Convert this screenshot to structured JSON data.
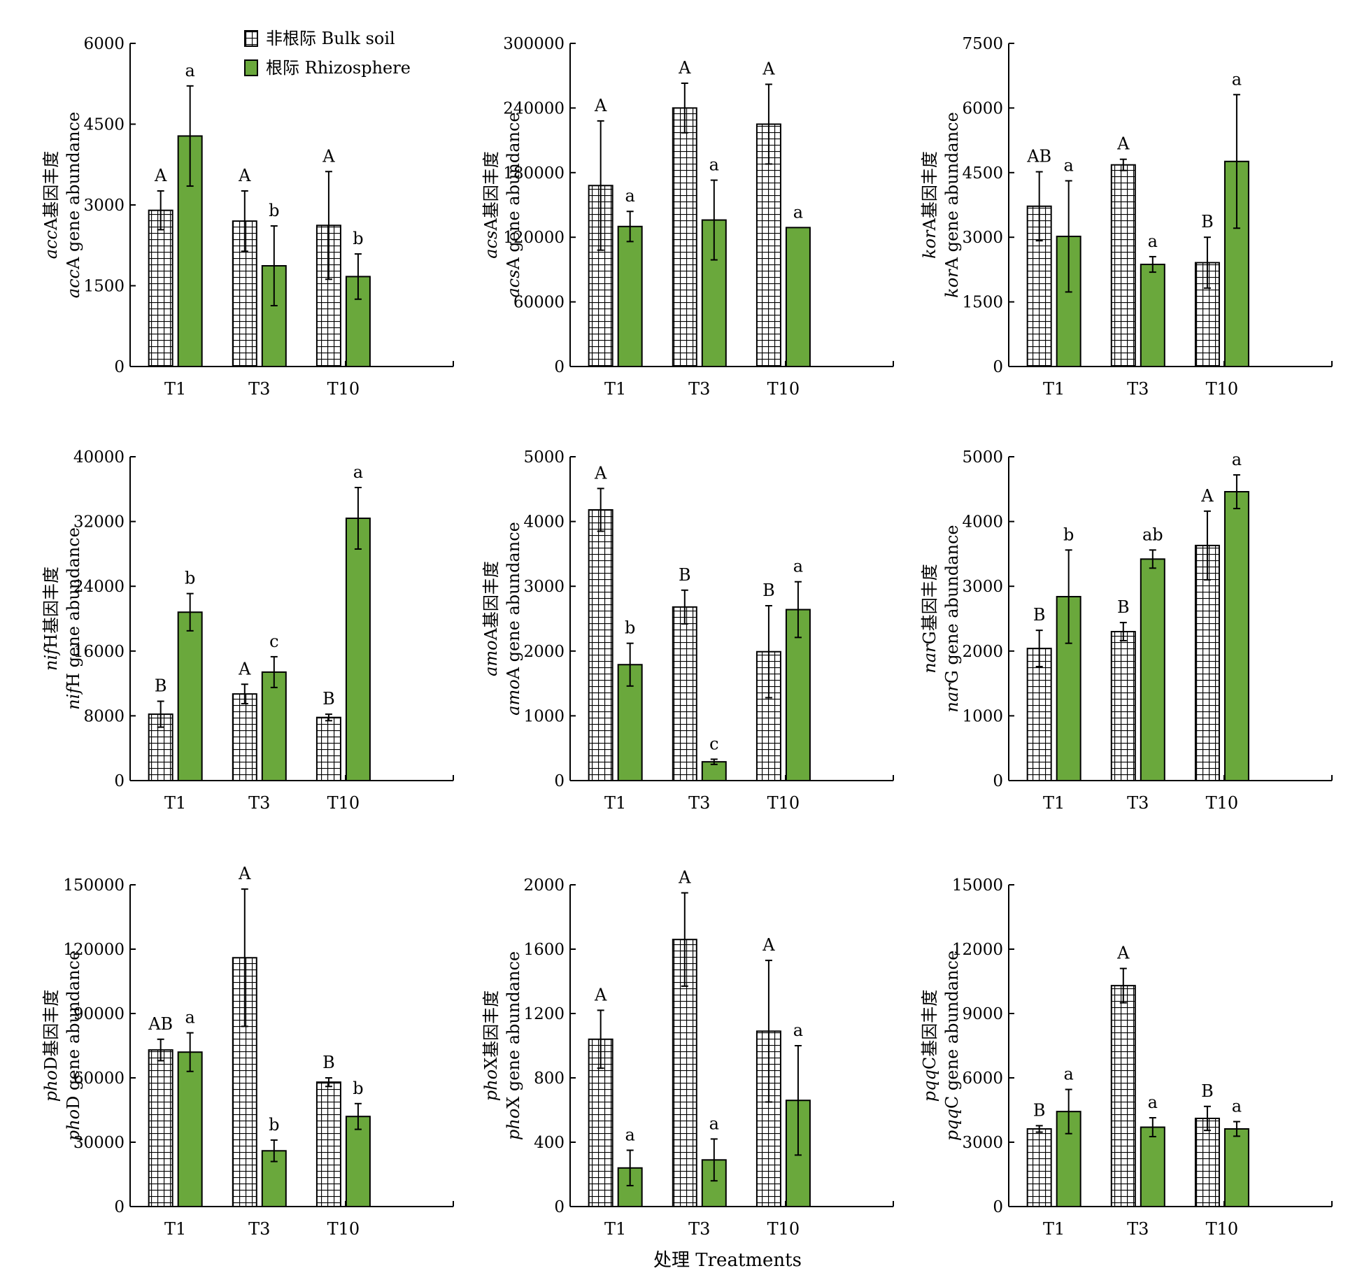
{
  "figure": {
    "xlabel": "处理 Treatments",
    "legend": [
      {
        "label": "非根际 Bulk soil",
        "pattern": "grid"
      },
      {
        "label": "根际 Rhizosphere",
        "pattern": "solid"
      }
    ],
    "colors": {
      "rhizosphere": "#6aa83c",
      "bulk_fill": "#ffffff",
      "line": "#000000"
    }
  },
  "chart_data": [
    {
      "type": "bar",
      "gene": "acc",
      "suffix": "A",
      "ylabel_cn": "基因丰度",
      "ylabel_en": "gene abundance",
      "categories": [
        "T1",
        "T3",
        "T10"
      ],
      "ylim": [
        0,
        6000
      ],
      "yticks": [
        "0",
        "1500",
        "3000",
        "4500",
        "6000"
      ],
      "series": [
        {
          "name": "非根际 Bulk soil",
          "values": [
            2900,
            2700,
            2620
          ],
          "errors": [
            360,
            560,
            1000
          ],
          "letters": [
            "A",
            "A",
            "A"
          ]
        },
        {
          "name": "根际 Rhizosphere",
          "values": [
            4280,
            1870,
            1670
          ],
          "errors": [
            930,
            740,
            420
          ],
          "letters": [
            "a",
            "b",
            "b"
          ]
        }
      ]
    },
    {
      "type": "bar",
      "gene": "acs",
      "suffix": "A",
      "ylabel_cn": "基因丰度",
      "ylabel_en": "gene abundance",
      "categories": [
        "T1",
        "T3",
        "T10"
      ],
      "ylim": [
        0,
        300000
      ],
      "yticks": [
        "0",
        "60000",
        "120000",
        "180000",
        "240000",
        "300000"
      ],
      "series": [
        {
          "name": "非根际 Bulk soil",
          "values": [
            168000,
            240000,
            225000
          ],
          "errors": [
            60000,
            23000,
            37000
          ],
          "letters": [
            "A",
            "A",
            "A"
          ]
        },
        {
          "name": "根际 Rhizosphere",
          "values": [
            130000,
            136000,
            129000
          ],
          "errors": [
            14000,
            37000,
            0
          ],
          "letters": [
            "a",
            "a",
            "a"
          ]
        }
      ]
    },
    {
      "type": "bar",
      "gene": "kor",
      "suffix": "A",
      "ylabel_cn": "基因丰度",
      "ylabel_en": "gene abundance",
      "categories": [
        "T1",
        "T3",
        "T10"
      ],
      "ylim": [
        0,
        7500
      ],
      "yticks": [
        "0",
        "1500",
        "3000",
        "4500",
        "6000",
        "7500"
      ],
      "series": [
        {
          "name": "非根际 Bulk soil",
          "values": [
            3720,
            4680,
            2410
          ],
          "errors": [
            800,
            130,
            590
          ],
          "letters": [
            "AB",
            "A",
            "B"
          ]
        },
        {
          "name": "根际 Rhizosphere",
          "values": [
            3020,
            2370,
            4760
          ],
          "errors": [
            1290,
            180,
            1550
          ],
          "letters": [
            "a",
            "a",
            "a"
          ]
        }
      ]
    },
    {
      "type": "bar",
      "gene": "nif",
      "suffix": "H",
      "ylabel_cn": "基因丰度",
      "ylabel_en": "gene abundance",
      "categories": [
        "T1",
        "T3",
        "T10"
      ],
      "ylim": [
        0,
        40000
      ],
      "yticks": [
        "0",
        "8000",
        "16000",
        "24000",
        "32000",
        "40000"
      ],
      "series": [
        {
          "name": "非根际 Bulk soil",
          "values": [
            8200,
            10700,
            7800
          ],
          "errors": [
            1600,
            1200,
            400
          ],
          "letters": [
            "B",
            "A",
            "B"
          ]
        },
        {
          "name": "根际 Rhizosphere",
          "values": [
            20800,
            13400,
            32400
          ],
          "errors": [
            2300,
            1900,
            3800
          ],
          "letters": [
            "b",
            "c",
            "a"
          ]
        }
      ]
    },
    {
      "type": "bar",
      "gene": "amo",
      "suffix": "A",
      "ylabel_cn": "基因丰度",
      "ylabel_en": "gene abundance",
      "categories": [
        "T1",
        "T3",
        "T10"
      ],
      "ylim": [
        0,
        5000
      ],
      "yticks": [
        "0",
        "1000",
        "2000",
        "3000",
        "4000",
        "5000"
      ],
      "series": [
        {
          "name": "非根际 Bulk soil",
          "values": [
            4180,
            2680,
            1990
          ],
          "errors": [
            330,
            260,
            710
          ],
          "letters": [
            "A",
            "B",
            "B"
          ]
        },
        {
          "name": "根际 Rhizosphere",
          "values": [
            1790,
            290,
            2640
          ],
          "errors": [
            330,
            40,
            430
          ],
          "letters": [
            "b",
            "c",
            "a"
          ]
        }
      ]
    },
    {
      "type": "bar",
      "gene": "nar",
      "suffix": "G",
      "ylabel_cn": "基因丰度",
      "ylabel_en": "gene abundance",
      "categories": [
        "T1",
        "T3",
        "T10"
      ],
      "ylim": [
        0,
        5000
      ],
      "yticks": [
        "0",
        "1000",
        "2000",
        "3000",
        "4000",
        "5000"
      ],
      "series": [
        {
          "name": "非根际 Bulk soil",
          "values": [
            2040,
            2300,
            3630
          ],
          "errors": [
            280,
            140,
            530
          ],
          "letters": [
            "B",
            "B",
            "A"
          ]
        },
        {
          "name": "根际 Rhizosphere",
          "values": [
            2840,
            3420,
            4460
          ],
          "errors": [
            720,
            140,
            260
          ],
          "letters": [
            "b",
            "ab",
            "a"
          ]
        }
      ]
    },
    {
      "type": "bar",
      "gene": "pho",
      "suffix": "D",
      "ylabel_cn": "基因丰度",
      "ylabel_en": "gene abundance",
      "categories": [
        "T1",
        "T3",
        "T10"
      ],
      "ylim": [
        0,
        150000
      ],
      "yticks": [
        "0",
        "30000",
        "60000",
        "90000",
        "120000",
        "150000"
      ],
      "series": [
        {
          "name": "非根际 Bulk soil",
          "values": [
            73000,
            116000,
            58000
          ],
          "errors": [
            5000,
            32000,
            2000
          ],
          "letters": [
            "AB",
            "A",
            "B"
          ]
        },
        {
          "name": "根际 Rhizosphere",
          "values": [
            72000,
            26000,
            42000
          ],
          "errors": [
            9000,
            5000,
            6000
          ],
          "letters": [
            "a",
            "b",
            "b"
          ]
        }
      ]
    },
    {
      "type": "bar",
      "gene": "pho",
      "suffix": "X",
      "ylabel_cn": "基因丰度",
      "ylabel_en": "gene abundance",
      "categories": [
        "T1",
        "T3",
        "T10"
      ],
      "ylim": [
        0,
        2000
      ],
      "yticks": [
        "0",
        "400",
        "800",
        "1200",
        "1600",
        "2000"
      ],
      "series": [
        {
          "name": "非根际 Bulk soil",
          "values": [
            1040,
            1660,
            1090
          ],
          "errors": [
            180,
            290,
            440
          ],
          "letters": [
            "A",
            "A",
            "A"
          ]
        },
        {
          "name": "根际 Rhizosphere",
          "values": [
            240,
            290,
            660
          ],
          "errors": [
            110,
            130,
            340
          ],
          "letters": [
            "a",
            "a",
            "a"
          ]
        }
      ]
    },
    {
      "type": "bar",
      "gene": "pqq",
      "suffix": "C",
      "ylabel_cn": "基因丰度",
      "ylabel_en": "gene abundance",
      "categories": [
        "T1",
        "T3",
        "T10"
      ],
      "ylim": [
        0,
        15000
      ],
      "yticks": [
        "0",
        "3000",
        "6000",
        "9000",
        "12000",
        "15000"
      ],
      "series": [
        {
          "name": "非根际 Bulk soil",
          "values": [
            3620,
            10300,
            4110
          ],
          "errors": [
            150,
            800,
            560
          ],
          "letters": [
            "B",
            "A",
            "B"
          ]
        },
        {
          "name": "根际 Rhizosphere",
          "values": [
            4430,
            3700,
            3620
          ],
          "errors": [
            1030,
            440,
            340
          ],
          "letters": [
            "a",
            "a",
            "a"
          ]
        }
      ]
    }
  ]
}
